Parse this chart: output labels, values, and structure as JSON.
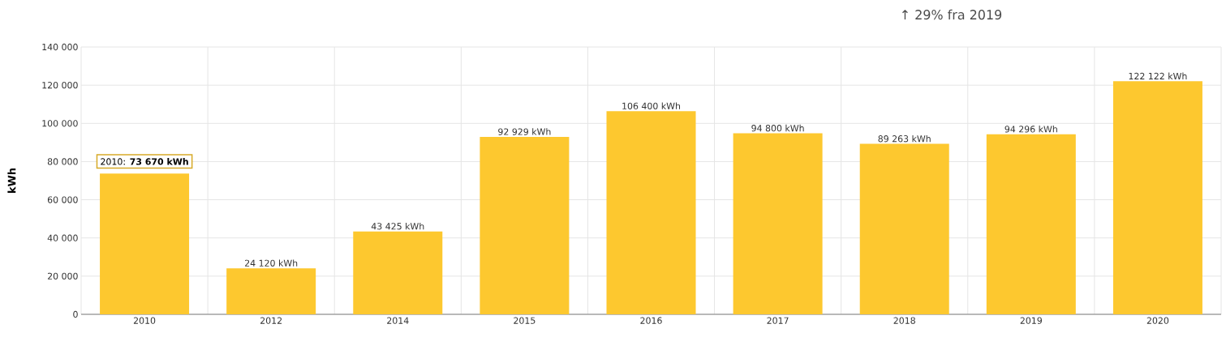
{
  "chart_data": {
    "type": "bar",
    "title": "↑ 29% fra 2019",
    "ylabel": "kWh",
    "categories": [
      "2010",
      "2012",
      "2014",
      "2015",
      "2016",
      "2017",
      "2018",
      "2019",
      "2020"
    ],
    "values": [
      73670,
      24120,
      43425,
      92929,
      106400,
      94800,
      89263,
      94296,
      122122
    ],
    "value_labels": [
      null,
      "24 120 kWh",
      "43 425 kWh",
      "92 929 kWh",
      "106 400 kWh",
      "94 800 kWh",
      "89 263 kWh",
      "94 296 kWh",
      "122 122 kWh"
    ],
    "color": "#fdc82f",
    "ylim": [
      0,
      140000
    ],
    "yticks": [
      {
        "value": 0,
        "label": "0"
      },
      {
        "value": 20000,
        "label": "20 000"
      },
      {
        "value": 40000,
        "label": "40 000"
      },
      {
        "value": 60000,
        "label": "60 000"
      },
      {
        "value": 80000,
        "label": "80 000"
      },
      {
        "value": 100000,
        "label": "100 000"
      },
      {
        "value": 120000,
        "label": "120 000"
      },
      {
        "value": 140000,
        "label": "140 000"
      }
    ],
    "grid": true,
    "annotations": [
      {
        "text": "2010: **73 670 kWh**",
        "x": "2010",
        "y": 73670
      }
    ]
  }
}
